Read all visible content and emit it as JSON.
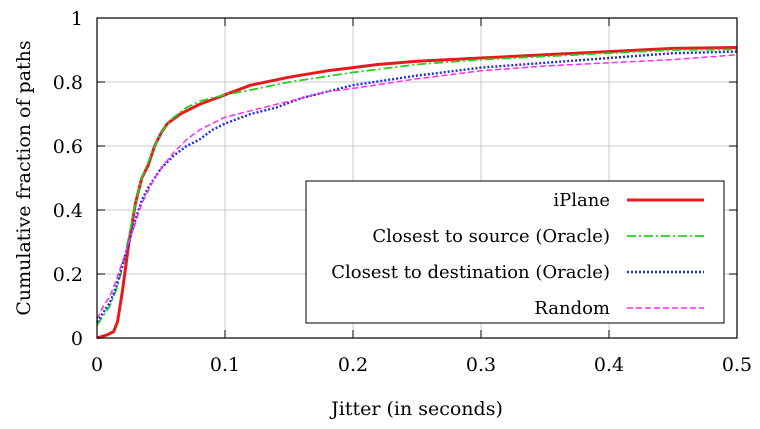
{
  "chart_data": {
    "type": "line",
    "xlabel": "Jitter (in seconds)",
    "ylabel": "Cumulative fraction of paths",
    "xlim": [
      0,
      0.5
    ],
    "ylim": [
      0,
      1
    ],
    "xticks": [
      0,
      0.1,
      0.2,
      0.3,
      0.4,
      0.5
    ],
    "xtick_labels": [
      "0",
      "0.1",
      "0.2",
      "0.3",
      "0.4",
      "0.5"
    ],
    "yticks": [
      0,
      0.2,
      0.4,
      0.6,
      0.8,
      1
    ],
    "ytick_labels": [
      "0",
      "0.2",
      "0.4",
      "0.6",
      "0.8",
      "1"
    ],
    "grid": true,
    "legend_position": "bottom-right",
    "series": [
      {
        "name": "iPlane",
        "color": "#e8191c",
        "style": "solid",
        "x": [
          0,
          0.008,
          0.013,
          0.016,
          0.02,
          0.025,
          0.03,
          0.035,
          0.04,
          0.045,
          0.05,
          0.055,
          0.06,
          0.065,
          0.07,
          0.08,
          0.09,
          0.1,
          0.12,
          0.15,
          0.18,
          0.2,
          0.22,
          0.25,
          0.3,
          0.35,
          0.4,
          0.45,
          0.5
        ],
        "y": [
          0.0,
          0.01,
          0.02,
          0.05,
          0.15,
          0.3,
          0.42,
          0.5,
          0.54,
          0.6,
          0.64,
          0.67,
          0.685,
          0.7,
          0.71,
          0.73,
          0.745,
          0.76,
          0.79,
          0.815,
          0.835,
          0.845,
          0.855,
          0.865,
          0.875,
          0.885,
          0.895,
          0.905,
          0.908
        ]
      },
      {
        "name": "Closest to source (Oracle)",
        "color": "#22d022",
        "style": "dashdot",
        "x": [
          0,
          0.005,
          0.01,
          0.015,
          0.02,
          0.025,
          0.03,
          0.035,
          0.04,
          0.045,
          0.05,
          0.055,
          0.06,
          0.07,
          0.08,
          0.1,
          0.12,
          0.15,
          0.2,
          0.25,
          0.3,
          0.35,
          0.4,
          0.45,
          0.5
        ],
        "y": [
          0.04,
          0.07,
          0.1,
          0.15,
          0.22,
          0.32,
          0.42,
          0.5,
          0.55,
          0.6,
          0.64,
          0.67,
          0.69,
          0.72,
          0.74,
          0.76,
          0.775,
          0.8,
          0.83,
          0.855,
          0.87,
          0.88,
          0.89,
          0.9,
          0.902
        ]
      },
      {
        "name": "Closest to destination (Oracle)",
        "color": "#1f2be0",
        "style": "dotted",
        "x": [
          0,
          0.005,
          0.01,
          0.015,
          0.02,
          0.025,
          0.03,
          0.035,
          0.04,
          0.045,
          0.05,
          0.06,
          0.07,
          0.08,
          0.09,
          0.1,
          0.12,
          0.14,
          0.16,
          0.18,
          0.2,
          0.25,
          0.3,
          0.35,
          0.4,
          0.45,
          0.5
        ],
        "y": [
          0.05,
          0.08,
          0.11,
          0.16,
          0.23,
          0.3,
          0.37,
          0.43,
          0.47,
          0.5,
          0.53,
          0.57,
          0.6,
          0.62,
          0.65,
          0.67,
          0.7,
          0.72,
          0.75,
          0.77,
          0.79,
          0.82,
          0.845,
          0.86,
          0.875,
          0.89,
          0.895
        ]
      },
      {
        "name": "Random",
        "color": "#ff2bf0",
        "style": "dashed",
        "x": [
          0,
          0.005,
          0.01,
          0.015,
          0.02,
          0.025,
          0.03,
          0.035,
          0.04,
          0.045,
          0.05,
          0.06,
          0.07,
          0.08,
          0.09,
          0.1,
          0.12,
          0.14,
          0.16,
          0.18,
          0.2,
          0.25,
          0.3,
          0.35,
          0.4,
          0.45,
          0.5
        ],
        "y": [
          0.06,
          0.1,
          0.13,
          0.18,
          0.24,
          0.3,
          0.36,
          0.42,
          0.46,
          0.5,
          0.53,
          0.58,
          0.62,
          0.65,
          0.67,
          0.69,
          0.71,
          0.73,
          0.75,
          0.77,
          0.78,
          0.81,
          0.835,
          0.85,
          0.86,
          0.87,
          0.885
        ]
      }
    ]
  }
}
